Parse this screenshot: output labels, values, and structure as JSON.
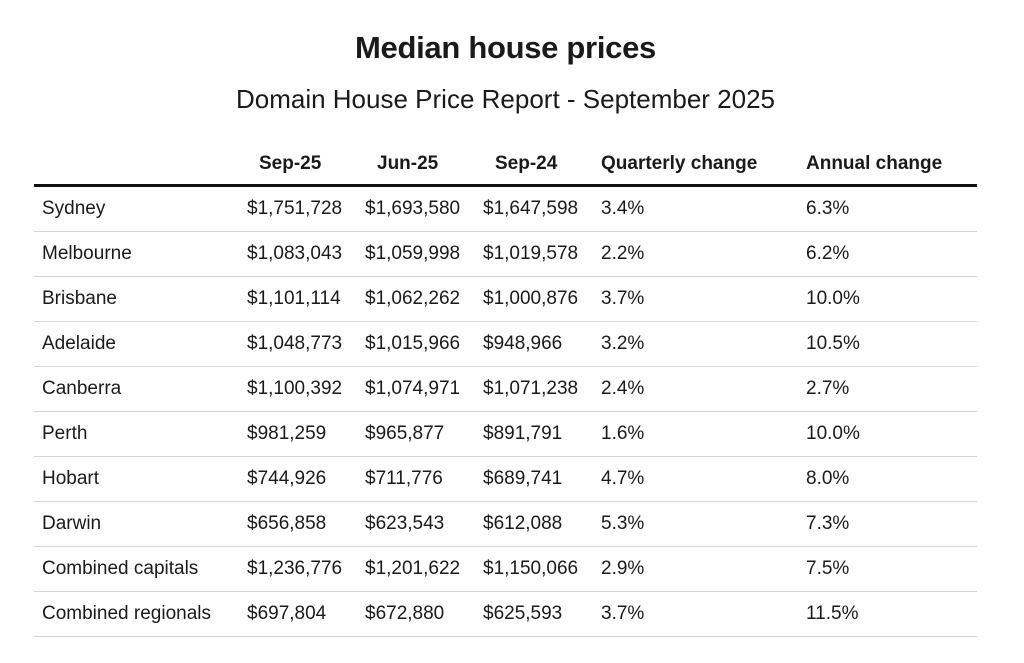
{
  "title": "Median house prices",
  "subtitle": "Domain House Price Report - September 2025",
  "chart_data": {
    "type": "table",
    "columns": [
      "",
      "Sep-25",
      "Jun-25",
      "Sep-24",
      "Quarterly change",
      "Annual change"
    ],
    "rows": [
      [
        "Sydney",
        "$1,751,728",
        "$1,693,580",
        "$1,647,598",
        "3.4%",
        "6.3%"
      ],
      [
        "Melbourne",
        "$1,083,043",
        "$1,059,998",
        "$1,019,578",
        "2.2%",
        "6.2%"
      ],
      [
        "Brisbane",
        "$1,101,114",
        "$1,062,262",
        "$1,000,876",
        "3.7%",
        "10.0%"
      ],
      [
        "Adelaide",
        "$1,048,773",
        "$1,015,966",
        "$948,966",
        "3.2%",
        "10.5%"
      ],
      [
        "Canberra",
        "$1,100,392",
        "$1,074,971",
        "$1,071,238",
        "2.4%",
        "2.7%"
      ],
      [
        "Perth",
        "$981,259",
        "$965,877",
        "$891,791",
        "1.6%",
        "10.0%"
      ],
      [
        "Hobart",
        "$744,926",
        "$711,776",
        "$689,741",
        "4.7%",
        "8.0%"
      ],
      [
        "Darwin",
        "$656,858",
        "$623,543",
        "$612,088",
        "5.3%",
        "7.3%"
      ],
      [
        "Combined capitals",
        "$1,236,776",
        "$1,201,622",
        "$1,150,066",
        "2.9%",
        "7.5%"
      ],
      [
        "Combined regionals",
        "$697,804",
        "$672,880",
        "$625,593",
        "3.7%",
        "11.5%"
      ]
    ]
  }
}
